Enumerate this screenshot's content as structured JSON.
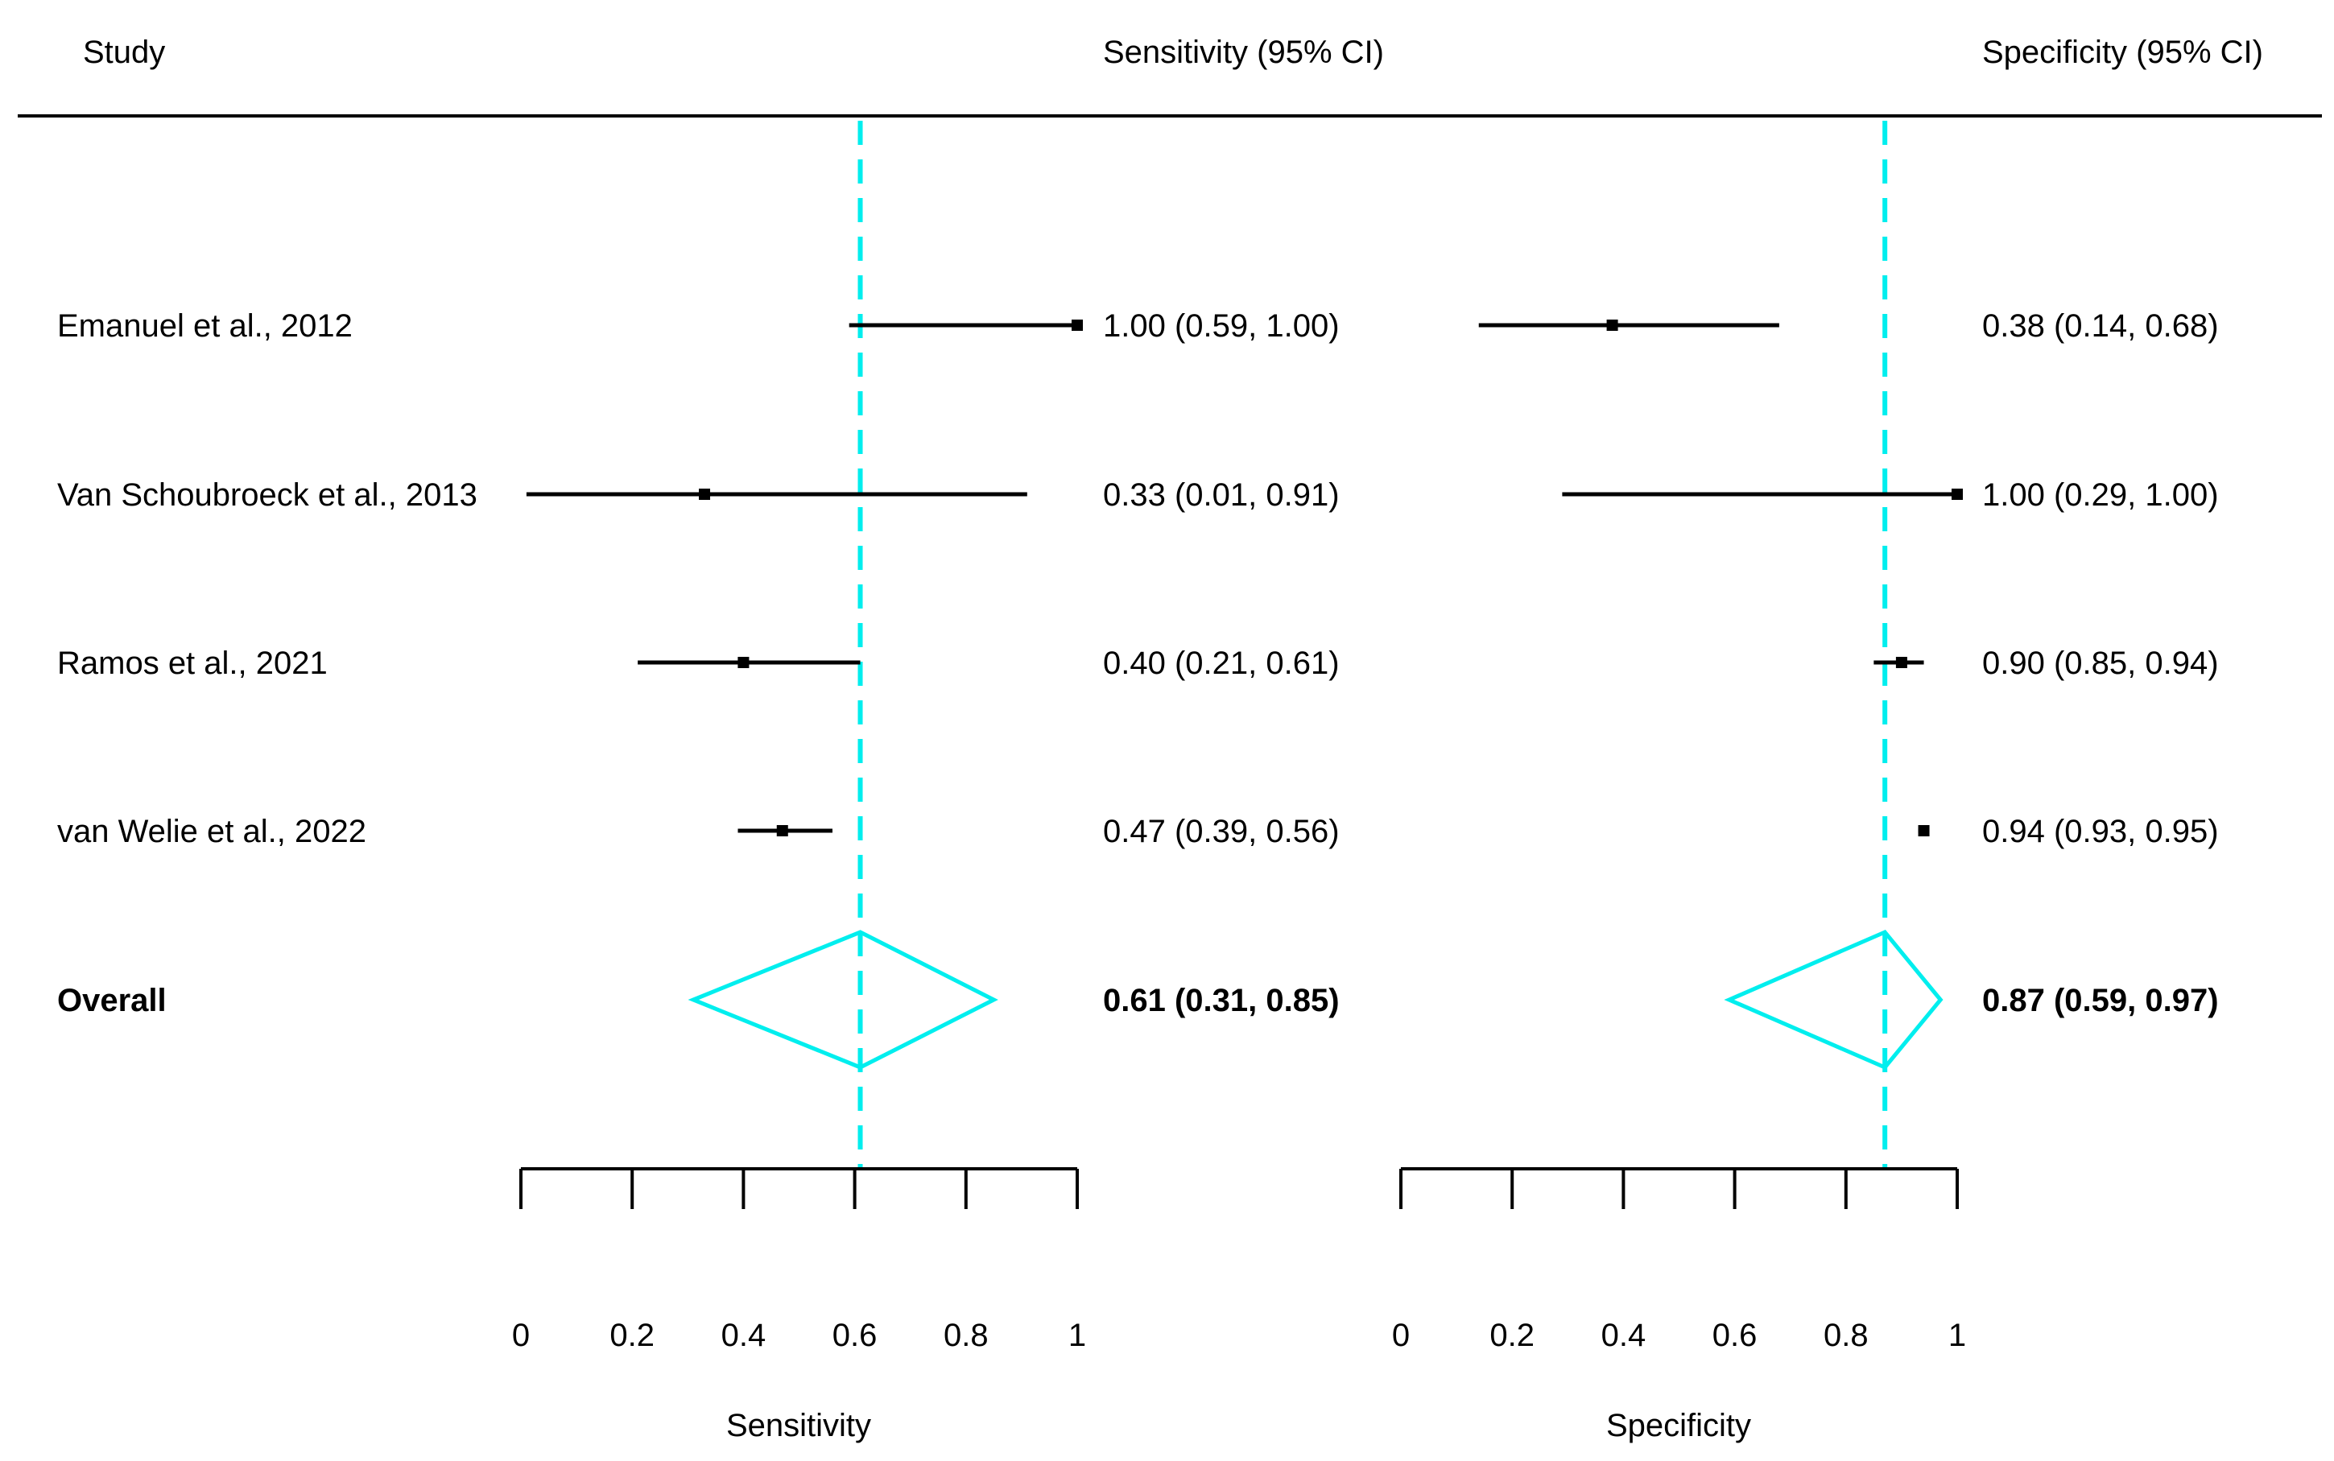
{
  "headers": {
    "study": "Study",
    "sensitivity": "Sensitivity (95% CI)",
    "specificity": "Specificity (95% CI)"
  },
  "axis_titles": {
    "sensitivity": "Sensitivity",
    "specificity": "Specificity"
  },
  "colors": {
    "pooled": "#00EEEE",
    "study": "#000000"
  },
  "chart_data": {
    "type": "forest",
    "xlim": [
      0,
      1
    ],
    "ticks": [
      0,
      0.2,
      0.4,
      0.6,
      0.8,
      1
    ],
    "tick_labels": [
      "0",
      "0.2",
      "0.4",
      "0.6",
      "0.8",
      "1"
    ],
    "studies": [
      {
        "name": "Emanuel et al., 2012",
        "sens": {
          "est": 1.0,
          "lo": 0.59,
          "hi": 1.0,
          "label": "1.00 (0.59, 1.00)"
        },
        "spec": {
          "est": 0.38,
          "lo": 0.14,
          "hi": 0.68,
          "label": "0.38 (0.14, 0.68)"
        }
      },
      {
        "name": "Van Schoubroeck et al., 2013",
        "sens": {
          "est": 0.33,
          "lo": 0.01,
          "hi": 0.91,
          "label": "0.33 (0.01, 0.91)"
        },
        "spec": {
          "est": 1.0,
          "lo": 0.29,
          "hi": 1.0,
          "label": "1.00 (0.29, 1.00)"
        }
      },
      {
        "name": "Ramos et al., 2021",
        "sens": {
          "est": 0.4,
          "lo": 0.21,
          "hi": 0.61,
          "label": "0.40 (0.21, 0.61)"
        },
        "spec": {
          "est": 0.9,
          "lo": 0.85,
          "hi": 0.94,
          "label": "0.90 (0.85, 0.94)"
        }
      },
      {
        "name": "van Welie et al., 2022",
        "sens": {
          "est": 0.47,
          "lo": 0.39,
          "hi": 0.56,
          "label": "0.47 (0.39, 0.56)"
        },
        "spec": {
          "est": 0.94,
          "lo": 0.93,
          "hi": 0.95,
          "label": "0.94 (0.93, 0.95)"
        }
      }
    ],
    "overall": {
      "name": "Overall",
      "sens": {
        "est": 0.61,
        "lo": 0.31,
        "hi": 0.85,
        "label": "0.61 (0.31, 0.85)"
      },
      "spec": {
        "est": 0.87,
        "lo": 0.59,
        "hi": 0.97,
        "label": "0.87 (0.59, 0.97)"
      }
    }
  }
}
